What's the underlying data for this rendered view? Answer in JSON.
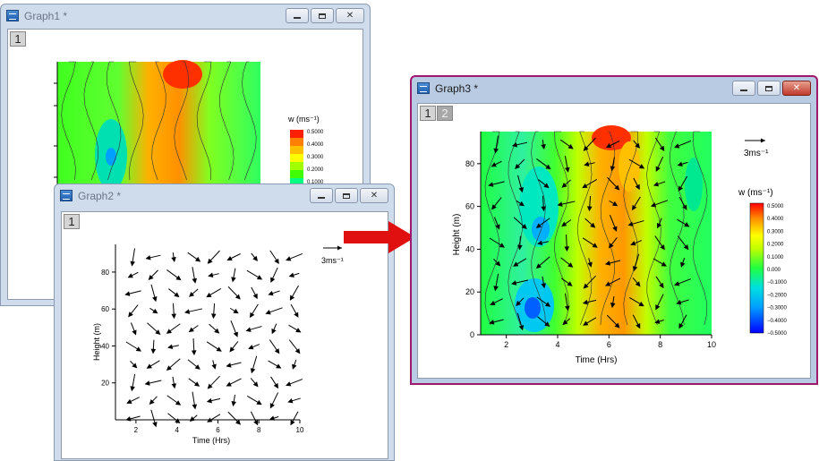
{
  "windows": {
    "graph1": {
      "title": "Graph1 *",
      "layers": [
        "1"
      ]
    },
    "graph2": {
      "title": "Graph2 *",
      "layers": [
        "1"
      ]
    },
    "graph3": {
      "title": "Graph3 *",
      "layers": [
        "1",
        "2"
      ]
    }
  },
  "colorbar": {
    "title": "w (ms⁻¹)",
    "labels": [
      "0.5000",
      "0.4000",
      "0.3000",
      "0.2000",
      "0.1000",
      "0.000",
      "−0.1000",
      "−0.2000",
      "−0.3000",
      "−0.4000",
      "−0.5000"
    ],
    "graph1_labels": [
      "0.5000",
      "0.4000",
      "0.3000",
      "0.2000",
      "0.1000"
    ],
    "colors": [
      "#0000ff",
      "#00a0ff",
      "#00e0e0",
      "#00ff80",
      "#40ff00",
      "#a0ff00",
      "#ffff00",
      "#ffc000",
      "#ff8000",
      "#ff2000"
    ]
  },
  "vector_scale": {
    "label": "3ms⁻¹"
  },
  "chart_data": [
    {
      "type": "vector",
      "xlabel": "Time (Hrs)",
      "ylabel": "Height (m)",
      "xlim": [
        1,
        10
      ],
      "ylim": [
        0,
        95
      ],
      "x_ticks": [
        "2",
        "4",
        "6",
        "8",
        "10"
      ],
      "y_ticks": [
        "20",
        "40",
        "60",
        "80"
      ]
    },
    {
      "type": "heatmap",
      "xlabel": "Time (Hrs)",
      "ylabel": "Height (m)",
      "xlim": [
        1,
        10
      ],
      "ylim": [
        0,
        95
      ],
      "x_ticks": [
        "2",
        "4",
        "6",
        "8",
        "10"
      ],
      "y_ticks": [
        "0",
        "20",
        "40",
        "60",
        "80"
      ]
    }
  ]
}
